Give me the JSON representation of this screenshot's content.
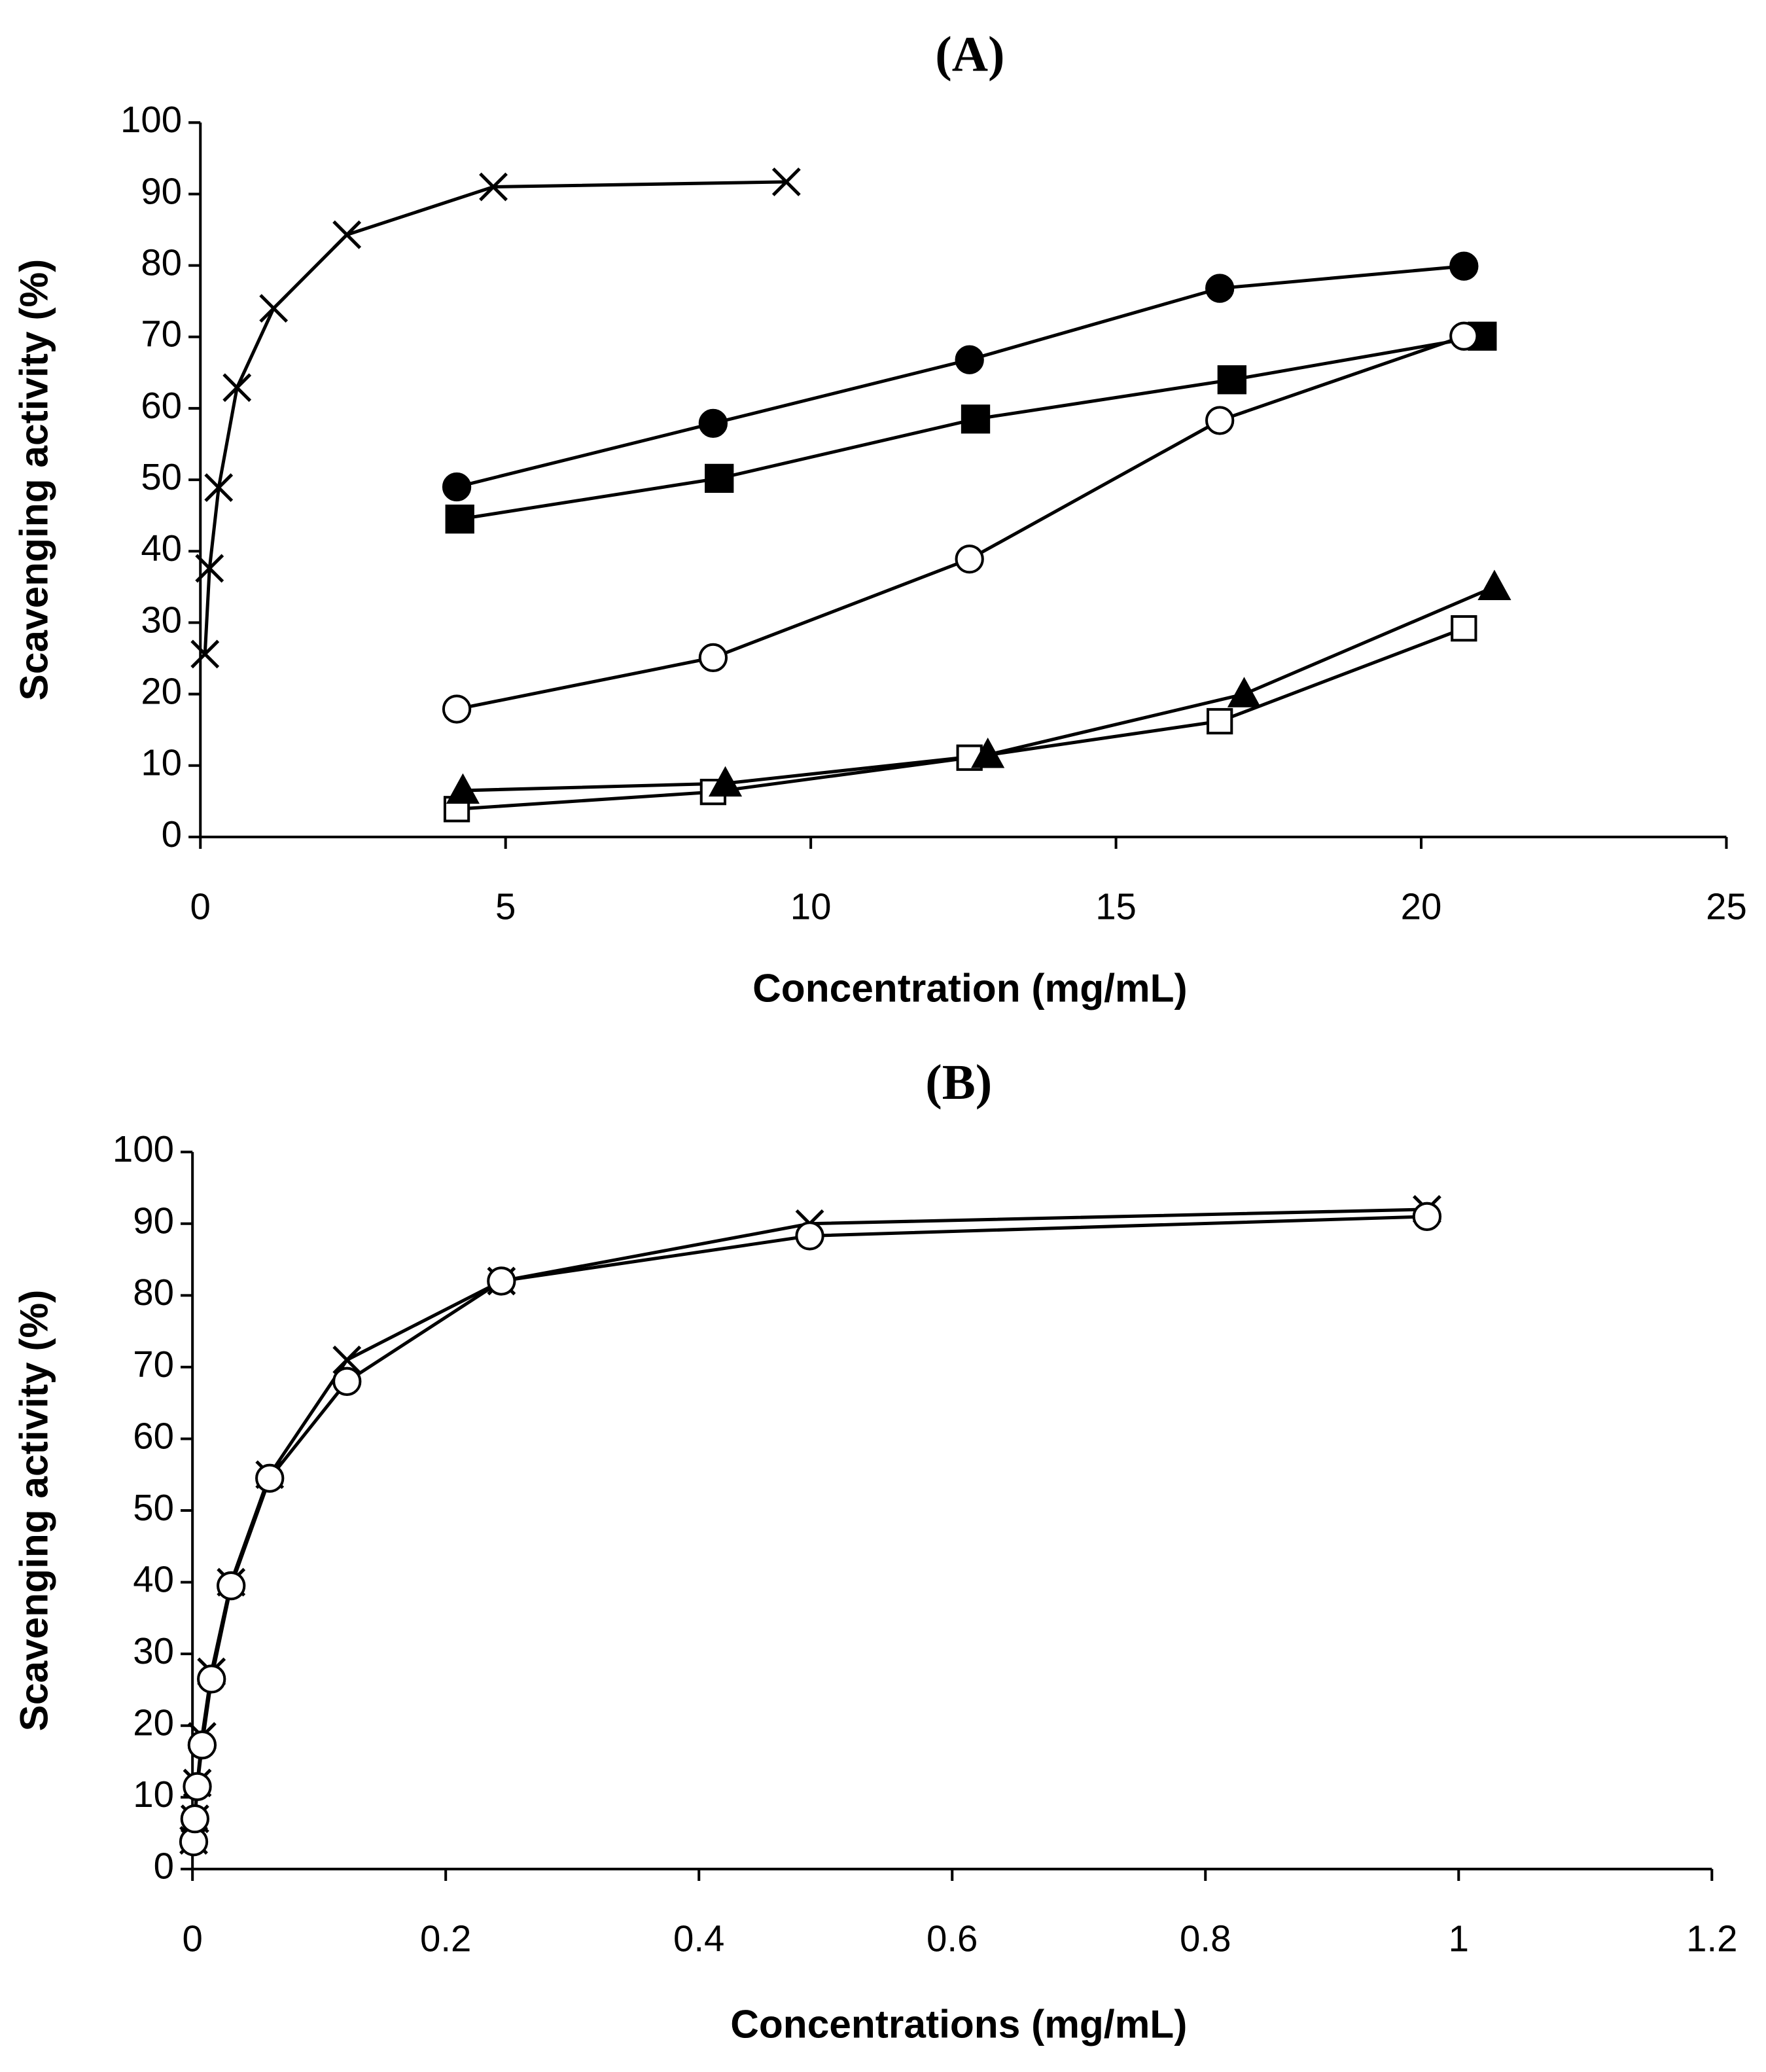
{
  "chart_data": [
    {
      "type": "line",
      "title": "(A)",
      "x_label": "Concentration (mg/mL)",
      "y_label": "Scavenging activity (%)",
      "xlim": [
        0,
        25
      ],
      "xticks": [
        0,
        5,
        10,
        15,
        20,
        25
      ],
      "ylim": [
        0,
        100
      ],
      "yticks": [
        0,
        10,
        20,
        30,
        40,
        50,
        60,
        70,
        80,
        90,
        100
      ],
      "series": [
        {
          "marker": "x",
          "color": "#000000",
          "x": [
            0.075,
            0.15,
            0.3,
            0.6,
            1.2,
            2.4,
            4.8,
            9.6
          ],
          "values": [
            25.6,
            37.6,
            48.9,
            62.9,
            74,
            84.3,
            91,
            91.7
          ]
        },
        {
          "marker": "circle-filled",
          "color": "#000000",
          "x": [
            4.2,
            8.4,
            12.6,
            16.7,
            20.7
          ],
          "values": [
            49,
            57.9,
            66.8,
            76.8,
            79.9
          ]
        },
        {
          "marker": "square-filled",
          "color": "#000000",
          "x": [
            4.25,
            8.5,
            12.7,
            16.9,
            21
          ],
          "values": [
            44.5,
            50.2,
            58.5,
            64,
            70.1
          ]
        },
        {
          "marker": "circle-open",
          "color": "#000000",
          "x": [
            4.2,
            8.4,
            12.6,
            16.7,
            20.7
          ],
          "values": [
            17.9,
            25.1,
            38.9,
            58.3,
            70.1
          ]
        },
        {
          "marker": "square-open",
          "color": "#000000",
          "x": [
            4.2,
            8.4,
            12.6,
            16.7,
            20.7
          ],
          "values": [
            3.9,
            6.3,
            11.1,
            16.2,
            29.2
          ]
        },
        {
          "marker": "triangle-filled",
          "color": "#000000",
          "x": [
            4.3,
            8.6,
            12.9,
            17.1,
            21.2
          ],
          "values": [
            6.5,
            7.5,
            11.5,
            20,
            35
          ]
        }
      ]
    },
    {
      "type": "line",
      "title": "(B)",
      "x_label": "Concentrations (mg/mL)",
      "y_label": "Scavenging activity (%)",
      "xlim": [
        0,
        1.2
      ],
      "xticks": [
        0,
        0.2,
        0.4,
        0.6,
        0.8,
        1,
        1.2
      ],
      "ylim": [
        0,
        100
      ],
      "yticks": [
        0,
        10,
        20,
        30,
        40,
        50,
        60,
        70,
        80,
        90,
        100
      ],
      "series": [
        {
          "marker": "x",
          "color": "#000000",
          "x": [
            0.00095,
            0.0019,
            0.0038,
            0.0076,
            0.015,
            0.0305,
            0.061,
            0.122,
            0.244,
            0.4875,
            0.975
          ],
          "values": [
            4,
            7,
            12,
            18.5,
            27.5,
            40,
            55,
            71,
            82,
            90,
            92
          ]
        },
        {
          "marker": "circle-open",
          "color": "#000000",
          "x": [
            0.00095,
            0.0019,
            0.0038,
            0.0076,
            0.015,
            0.0305,
            0.061,
            0.122,
            0.244,
            0.4875,
            0.975
          ],
          "values": [
            3.8,
            7,
            11.5,
            17.3,
            26.5,
            39.5,
            54.5,
            68,
            82,
            88.3,
            91
          ]
        }
      ]
    }
  ]
}
